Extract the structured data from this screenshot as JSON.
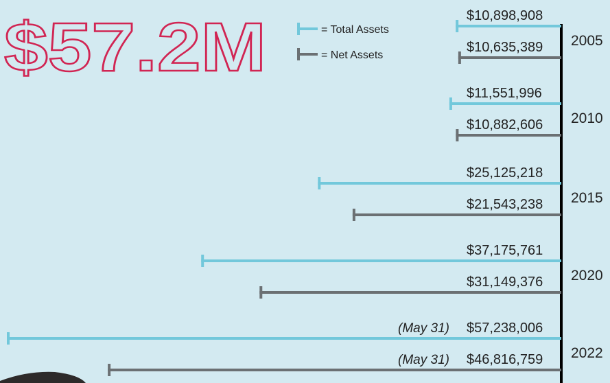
{
  "chart_data": {
    "type": "bar",
    "orientation": "horizontal",
    "title": "$57.2M",
    "categories": [
      "2005",
      "2010",
      "2015",
      "2020",
      "2022"
    ],
    "series": [
      {
        "name": "= Total Assets",
        "color": "#72c8db",
        "values": [
          10898908,
          11551996,
          25125218,
          37175761,
          57238006
        ],
        "value_labels": [
          "$10,898,908",
          "$11,551,996",
          "$25,125,218",
          "$37,175,761",
          "$57,238,006"
        ]
      },
      {
        "name": "= Net Assets",
        "color": "#6b7073",
        "values": [
          10635389,
          10882606,
          21543238,
          31149376,
          46816759
        ],
        "value_labels": [
          "$10,635,389",
          "$10,882,606",
          "$21,543,238",
          "$31,149,376",
          "$46,816,759"
        ]
      }
    ],
    "annotations": [
      "(May 31)",
      "(May 31)"
    ]
  }
}
